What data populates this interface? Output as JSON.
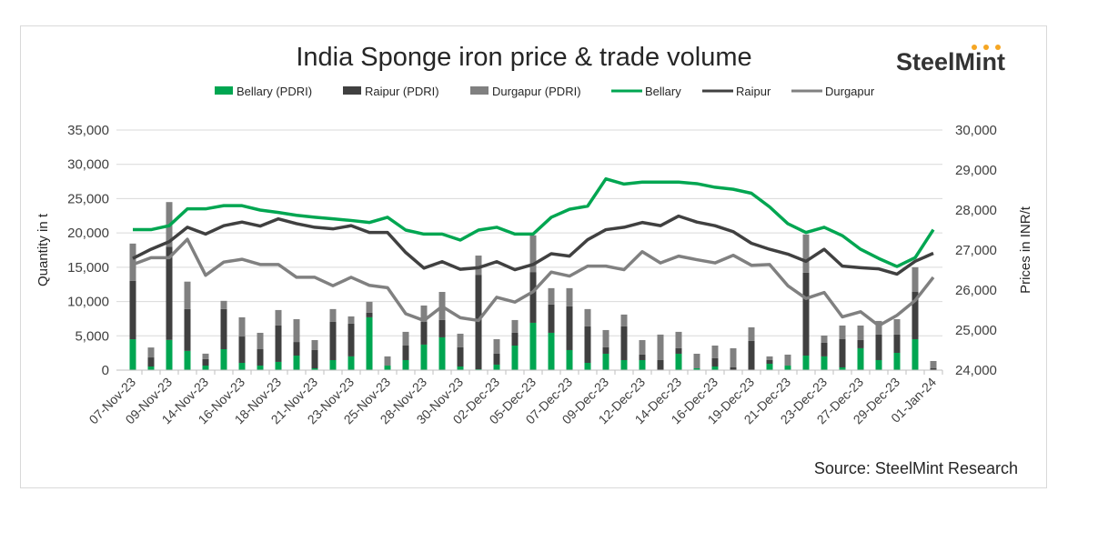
{
  "chart_data": {
    "type": "bar+line",
    "title": "India Sponge iron price & trade volume",
    "logo": "SteelMint",
    "source": "Source: SteelMint Research",
    "ylabel_left": "Quantity in t",
    "ylabel_right": "Prices in INR/t",
    "ylim_left": [
      0,
      35000
    ],
    "ylim_right": [
      24000,
      30000
    ],
    "yticks_left": [
      "0",
      "5,000",
      "10,000",
      "15,000",
      "20,000",
      "25,000",
      "30,000",
      "35,000"
    ],
    "yticks_right": [
      "24,000",
      "25,000",
      "26,000",
      "27,000",
      "28,000",
      "29,000",
      "30,000"
    ],
    "grid": true,
    "legend_placement": "top",
    "categories": [
      "07-Nov-23",
      "",
      "09-Nov-23",
      "",
      "14-Nov-23",
      "",
      "16-Nov-23",
      "",
      "18-Nov-23",
      "",
      "21-Nov-23",
      "",
      "23-Nov-23",
      "",
      "25-Nov-23",
      "",
      "28-Nov-23",
      "",
      "30-Nov-23",
      "",
      "02-Dec-23",
      "",
      "05-Dec-23",
      "",
      "07-Dec-23",
      "",
      "09-Dec-23",
      "",
      "12-Dec-23",
      "",
      "14-Dec-23",
      "",
      "16-Dec-23",
      "",
      "19-Dec-23",
      "",
      "21-Dec-23",
      "",
      "23-Dec-23",
      "",
      "27-Dec-23",
      "",
      "29-Dec-23",
      "",
      "01-Jan-24"
    ],
    "bar_series": [
      {
        "name": "Bellary (PDRI)",
        "color": "#00A651",
        "values": [
          4500,
          530,
          4400,
          2800,
          660,
          3050,
          1060,
          660,
          1200,
          2120,
          265,
          1460,
          2000,
          7700,
          660,
          1460,
          3720,
          4780,
          530,
          130,
          800,
          3580,
          6900,
          5440,
          2920,
          1060,
          2390,
          1460,
          1460,
          0,
          2390,
          265,
          530,
          0,
          0,
          930,
          660,
          2120,
          2000,
          400,
          3190,
          1460,
          2520,
          4510,
          0
        ]
      },
      {
        "name": "Raipur (PDRI)",
        "color": "#404040",
        "values": [
          8500,
          1320,
          13600,
          6100,
          940,
          5850,
          3840,
          2390,
          5300,
          1980,
          2655,
          5570,
          4770,
          660,
          0,
          2120,
          3310,
          2520,
          2790,
          13770,
          1590,
          1860,
          7400,
          4120,
          6370,
          5310,
          930,
          4910,
          800,
          1460,
          800,
          0,
          1200,
          400,
          4250,
          530,
          0,
          12080,
          1980,
          4110,
          1190,
          3720,
          2660,
          6890,
          265
        ]
      },
      {
        "name": "Durgapur (PDRI)",
        "color": "#808080",
        "values": [
          5450,
          1450,
          6500,
          4000,
          800,
          1200,
          2800,
          2390,
          2260,
          3330,
          1460,
          1870,
          1060,
          1600,
          1340,
          2000,
          2390,
          4100,
          1990,
          2800,
          2120,
          1860,
          5350,
          2390,
          2660,
          2530,
          2520,
          1730,
          2120,
          3720,
          2390,
          2125,
          1850,
          2790,
          1990,
          540,
          1600,
          5580,
          1060,
          1990,
          2120,
          1990,
          2250,
          3600,
          1065
        ]
      }
    ],
    "line_series": [
      {
        "name": "Bellary",
        "color": "#00A651",
        "values": [
          27510,
          27510,
          27610,
          28030,
          28030,
          28110,
          28110,
          28000,
          27940,
          27870,
          27820,
          27780,
          27740,
          27690,
          27820,
          27500,
          27400,
          27400,
          27250,
          27500,
          27570,
          27400,
          27400,
          27820,
          28020,
          28100,
          28780,
          28650,
          28700,
          28700,
          28700,
          28660,
          28570,
          28520,
          28420,
          28080,
          27660,
          27440,
          27570,
          27360,
          27020,
          26790,
          26590,
          26810,
          27510
        ]
      },
      {
        "name": "Raipur",
        "color": "#404040",
        "values": [
          26790,
          27020,
          27210,
          27570,
          27400,
          27610,
          27700,
          27600,
          27780,
          27660,
          27570,
          27530,
          27610,
          27440,
          27440,
          26940,
          26550,
          26710,
          26520,
          26560,
          26710,
          26510,
          26640,
          26910,
          26850,
          27260,
          27510,
          27570,
          27690,
          27610,
          27850,
          27700,
          27610,
          27460,
          27170,
          27020,
          26900,
          26720,
          27020,
          26600,
          26560,
          26530,
          26400,
          26720,
          26920
        ]
      },
      {
        "name": "Durgapur",
        "color": "#808080",
        "values": [
          26640,
          26810,
          26810,
          27270,
          26370,
          26700,
          26770,
          26640,
          26640,
          26320,
          26320,
          26110,
          26320,
          26120,
          26060,
          25410,
          25240,
          25590,
          25310,
          25240,
          25820,
          25700,
          25960,
          26450,
          26350,
          26600,
          26600,
          26510,
          26960,
          26680,
          26850,
          26760,
          26680,
          26870,
          26620,
          26640,
          26110,
          25790,
          25940,
          25330,
          25460,
          25110,
          25370,
          25740,
          26320
        ]
      }
    ]
  }
}
